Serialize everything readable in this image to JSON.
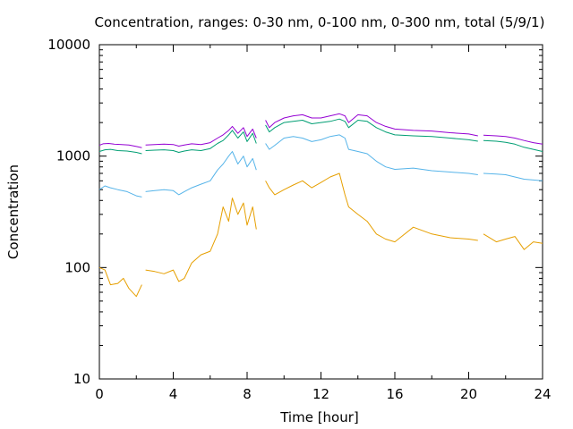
{
  "chart_data": {
    "type": "line",
    "title": "Concentration, ranges: 0-30 nm, 0-100 nm, 0-300 nm, total (5/9/1)",
    "xlabel": "Time [hour]",
    "ylabel": "Concentration",
    "xlim": [
      0,
      24
    ],
    "ylim": [
      10,
      10000
    ],
    "yscale": "log",
    "x_ticks": [
      0,
      4,
      8,
      12,
      16,
      20,
      24
    ],
    "x_tick_labels": [
      "0",
      "4",
      "8",
      "12",
      "16",
      "20",
      "24"
    ],
    "y_ticks": [
      10,
      100,
      1000,
      10000
    ],
    "y_tick_labels": [
      "10",
      "100",
      "1000",
      "10000"
    ],
    "grid": false,
    "legend": "none",
    "series": [
      {
        "color": "#9400d3",
        "segments": [
          [
            [
              0,
              1250
            ],
            [
              0.2,
              1290
            ],
            [
              0.5,
              1300
            ],
            [
              0.8,
              1280
            ],
            [
              1.2,
              1270
            ],
            [
              1.6,
              1260
            ],
            [
              2.0,
              1220
            ],
            [
              2.3,
              1190
            ]
          ],
          [
            [
              2.5,
              1260
            ],
            [
              3.0,
              1270
            ],
            [
              3.5,
              1280
            ],
            [
              4.0,
              1270
            ],
            [
              4.3,
              1230
            ],
            [
              4.6,
              1260
            ],
            [
              5.0,
              1290
            ],
            [
              5.5,
              1270
            ],
            [
              6.0,
              1320
            ],
            [
              6.4,
              1450
            ],
            [
              6.7,
              1550
            ],
            [
              7.0,
              1700
            ],
            [
              7.2,
              1850
            ],
            [
              7.5,
              1600
            ],
            [
              7.8,
              1800
            ],
            [
              8.0,
              1500
            ],
            [
              8.3,
              1750
            ],
            [
              8.5,
              1450
            ]
          ],
          [
            [
              9.0,
              2100
            ],
            [
              9.2,
              1800
            ],
            [
              9.5,
              2000
            ],
            [
              10.0,
              2200
            ],
            [
              10.5,
              2300
            ],
            [
              11.0,
              2350
            ],
            [
              11.5,
              2200
            ],
            [
              12.0,
              2200
            ],
            [
              12.5,
              2300
            ],
            [
              13.0,
              2400
            ],
            [
              13.3,
              2300
            ],
            [
              13.5,
              2000
            ],
            [
              14.0,
              2350
            ],
            [
              14.5,
              2300
            ],
            [
              15.0,
              2000
            ],
            [
              15.5,
              1850
            ],
            [
              16.0,
              1750
            ],
            [
              17.0,
              1700
            ],
            [
              18.0,
              1680
            ],
            [
              19.0,
              1620
            ],
            [
              20.0,
              1580
            ],
            [
              20.5,
              1520
            ]
          ],
          [
            [
              20.8,
              1540
            ],
            [
              21.5,
              1520
            ],
            [
              22.0,
              1500
            ],
            [
              22.5,
              1450
            ],
            [
              23.0,
              1380
            ],
            [
              23.5,
              1320
            ],
            [
              24.0,
              1280
            ]
          ]
        ]
      },
      {
        "color": "#009e73",
        "segments": [
          [
            [
              0,
              1100
            ],
            [
              0.3,
              1140
            ],
            [
              0.6,
              1150
            ],
            [
              1.0,
              1120
            ],
            [
              1.5,
              1110
            ],
            [
              2.0,
              1080
            ],
            [
              2.3,
              1050
            ]
          ],
          [
            [
              2.5,
              1120
            ],
            [
              3.0,
              1130
            ],
            [
              3.5,
              1140
            ],
            [
              4.0,
              1120
            ],
            [
              4.3,
              1080
            ],
            [
              4.6,
              1110
            ],
            [
              5.0,
              1140
            ],
            [
              5.5,
              1120
            ],
            [
              6.0,
              1170
            ],
            [
              6.4,
              1300
            ],
            [
              6.7,
              1380
            ],
            [
              7.0,
              1550
            ],
            [
              7.2,
              1700
            ],
            [
              7.5,
              1450
            ],
            [
              7.8,
              1650
            ],
            [
              8.0,
              1350
            ],
            [
              8.3,
              1600
            ],
            [
              8.5,
              1300
            ]
          ],
          [
            [
              9.0,
              1900
            ],
            [
              9.2,
              1650
            ],
            [
              9.5,
              1800
            ],
            [
              10.0,
              2000
            ],
            [
              10.5,
              2050
            ],
            [
              11.0,
              2100
            ],
            [
              11.5,
              1950
            ],
            [
              12.0,
              2000
            ],
            [
              12.5,
              2050
            ],
            [
              13.0,
              2150
            ],
            [
              13.3,
              2050
            ],
            [
              13.5,
              1800
            ],
            [
              14.0,
              2100
            ],
            [
              14.5,
              2050
            ],
            [
              15.0,
              1800
            ],
            [
              15.5,
              1650
            ],
            [
              16.0,
              1550
            ],
            [
              17.0,
              1520
            ],
            [
              18.0,
              1500
            ],
            [
              19.0,
              1450
            ],
            [
              20.0,
              1400
            ],
            [
              20.5,
              1360
            ]
          ],
          [
            [
              20.8,
              1380
            ],
            [
              21.5,
              1360
            ],
            [
              22.0,
              1330
            ],
            [
              22.5,
              1280
            ],
            [
              23.0,
              1200
            ],
            [
              23.5,
              1150
            ],
            [
              24.0,
              1100
            ]
          ]
        ]
      },
      {
        "color": "#56b4e9",
        "segments": [
          [
            [
              0,
              500
            ],
            [
              0.3,
              540
            ],
            [
              0.6,
              520
            ],
            [
              1.0,
              500
            ],
            [
              1.5,
              480
            ],
            [
              2.0,
              440
            ],
            [
              2.3,
              430
            ]
          ],
          [
            [
              2.5,
              480
            ],
            [
              3.0,
              490
            ],
            [
              3.5,
              500
            ],
            [
              4.0,
              490
            ],
            [
              4.3,
              450
            ],
            [
              4.6,
              480
            ],
            [
              5.0,
              520
            ],
            [
              5.5,
              560
            ],
            [
              6.0,
              600
            ],
            [
              6.4,
              750
            ],
            [
              6.7,
              850
            ],
            [
              7.0,
              1000
            ],
            [
              7.2,
              1100
            ],
            [
              7.5,
              850
            ],
            [
              7.8,
              1000
            ],
            [
              8.0,
              800
            ],
            [
              8.3,
              950
            ],
            [
              8.5,
              750
            ]
          ],
          [
            [
              9.0,
              1300
            ],
            [
              9.2,
              1150
            ],
            [
              9.5,
              1250
            ],
            [
              10.0,
              1450
            ],
            [
              10.5,
              1500
            ],
            [
              11.0,
              1450
            ],
            [
              11.5,
              1350
            ],
            [
              12.0,
              1400
            ],
            [
              12.5,
              1500
            ],
            [
              13.0,
              1550
            ],
            [
              13.3,
              1450
            ],
            [
              13.5,
              1150
            ],
            [
              14.0,
              1100
            ],
            [
              14.5,
              1050
            ],
            [
              15.0,
              900
            ],
            [
              15.5,
              800
            ],
            [
              16.0,
              760
            ],
            [
              17.0,
              780
            ],
            [
              18.0,
              740
            ],
            [
              19.0,
              720
            ],
            [
              20.0,
              700
            ],
            [
              20.5,
              680
            ]
          ],
          [
            [
              20.8,
              700
            ],
            [
              21.5,
              690
            ],
            [
              22.0,
              680
            ],
            [
              22.5,
              650
            ],
            [
              23.0,
              620
            ],
            [
              23.5,
              610
            ],
            [
              24.0,
              600
            ]
          ]
        ]
      },
      {
        "color": "#e69f00",
        "segments": [
          [
            [
              0,
              100
            ],
            [
              0.3,
              95
            ],
            [
              0.6,
              70
            ],
            [
              1.0,
              72
            ],
            [
              1.3,
              80
            ],
            [
              1.6,
              65
            ],
            [
              2.0,
              55
            ],
            [
              2.3,
              70
            ]
          ],
          [
            [
              2.5,
              95
            ],
            [
              3.0,
              92
            ],
            [
              3.5,
              88
            ],
            [
              4.0,
              95
            ],
            [
              4.3,
              75
            ],
            [
              4.6,
              80
            ],
            [
              5.0,
              110
            ],
            [
              5.5,
              130
            ],
            [
              6.0,
              140
            ],
            [
              6.4,
              200
            ],
            [
              6.7,
              350
            ],
            [
              7.0,
              260
            ],
            [
              7.2,
              420
            ],
            [
              7.5,
              300
            ],
            [
              7.8,
              380
            ],
            [
              8.0,
              240
            ],
            [
              8.3,
              350
            ],
            [
              8.5,
              220
            ]
          ],
          [
            [
              9.0,
              600
            ],
            [
              9.2,
              520
            ],
            [
              9.5,
              450
            ],
            [
              10.0,
              500
            ],
            [
              10.5,
              550
            ],
            [
              11.0,
              600
            ],
            [
              11.5,
              520
            ],
            [
              12.0,
              580
            ],
            [
              12.5,
              650
            ],
            [
              13.0,
              700
            ],
            [
              13.3,
              450
            ],
            [
              13.5,
              350
            ],
            [
              14.0,
              300
            ],
            [
              14.5,
              260
            ],
            [
              15.0,
              200
            ],
            [
              15.5,
              180
            ],
            [
              16.0,
              170
            ],
            [
              17.0,
              230
            ],
            [
              18.0,
              200
            ],
            [
              19.0,
              185
            ],
            [
              20.0,
              180
            ],
            [
              20.5,
              175
            ]
          ],
          [
            [
              20.8,
              200
            ],
            [
              21.5,
              170
            ],
            [
              22.0,
              180
            ],
            [
              22.5,
              190
            ],
            [
              23.0,
              145
            ],
            [
              23.5,
              170
            ],
            [
              24.0,
              165
            ]
          ]
        ]
      }
    ]
  }
}
